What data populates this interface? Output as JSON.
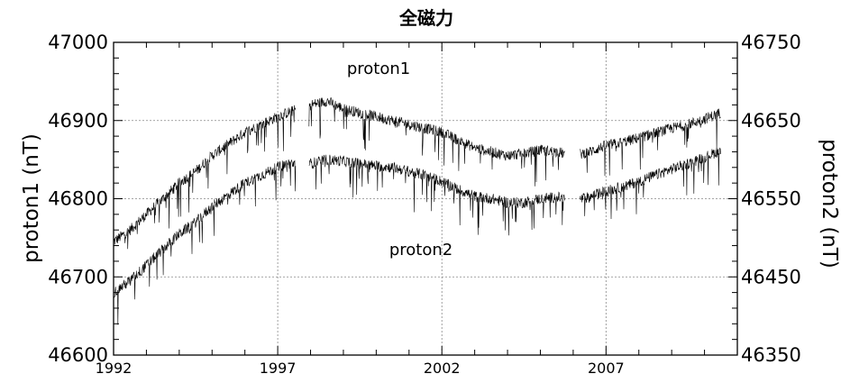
{
  "chart_data": {
    "type": "line",
    "title": "全磁力",
    "ylabel": "proton1 (nT)",
    "y2label": "proton2 (nT)",
    "xlim": [
      1992,
      2011
    ],
    "ylim": [
      46600,
      47000
    ],
    "y2lim": [
      46350,
      46750
    ],
    "x_ticks": [
      "1992",
      "1997",
      "2002",
      "2007"
    ],
    "y_ticks": [
      "46600",
      "46700",
      "46800",
      "46900",
      "47000"
    ],
    "y2_ticks": [
      "46350",
      "46450",
      "46550",
      "46650",
      "46750"
    ],
    "grid": true,
    "annotations": [
      "proton1",
      "proton2"
    ],
    "series": [
      {
        "name": "proton1",
        "axis": "left",
        "x": [
          1992.0,
          1992.5,
          1993.0,
          1993.5,
          1994.0,
          1994.5,
          1995.0,
          1995.5,
          1996.0,
          1996.5,
          1997.0,
          1997.3,
          1998.0,
          1998.5,
          1999.0,
          1999.5,
          2000.0,
          2000.5,
          2001.0,
          2001.5,
          2002.0,
          2002.5,
          2003.0,
          2003.5,
          2004.0,
          2004.5,
          2005.0,
          2005.5,
          2006.0,
          2006.5,
          2007.0,
          2007.5,
          2008.0,
          2008.5,
          2009.0,
          2009.5,
          2010.0,
          2010.5
        ],
        "values": [
          46745,
          46760,
          46780,
          46800,
          46820,
          46835,
          46855,
          46870,
          46885,
          46895,
          46905,
          46910,
          46920,
          46925,
          46915,
          46910,
          46905,
          46900,
          46895,
          46890,
          46885,
          46875,
          46865,
          46860,
          46855,
          46858,
          46862,
          46860,
          46855,
          46860,
          46868,
          46872,
          46878,
          46884,
          46890,
          46895,
          46902,
          46910
        ]
      },
      {
        "name": "proton2",
        "axis": "right",
        "x": [
          1992.0,
          1992.5,
          1993.0,
          1993.5,
          1994.0,
          1994.5,
          1995.0,
          1995.5,
          1996.0,
          1996.5,
          1997.0,
          1997.3,
          1998.0,
          1998.5,
          1999.0,
          1999.5,
          2000.0,
          2000.5,
          2001.0,
          2001.5,
          2002.0,
          2002.5,
          2003.0,
          2003.5,
          2004.0,
          2004.5,
          2005.0,
          2005.5,
          2006.0,
          2006.5,
          2007.0,
          2007.5,
          2008.0,
          2008.5,
          2009.0,
          2009.5,
          2010.0,
          2010.5
        ],
        "values": [
          46430,
          46445,
          46465,
          46485,
          46505,
          46520,
          46540,
          46555,
          46570,
          46580,
          46590,
          46595,
          46595,
          46600,
          46598,
          46595,
          46592,
          46590,
          46585,
          46580,
          46572,
          46562,
          46553,
          46550,
          46545,
          46545,
          46550,
          46552,
          46548,
          46552,
          46560,
          46565,
          46572,
          46580,
          46588,
          46595,
          46603,
          46612
        ]
      }
    ]
  }
}
